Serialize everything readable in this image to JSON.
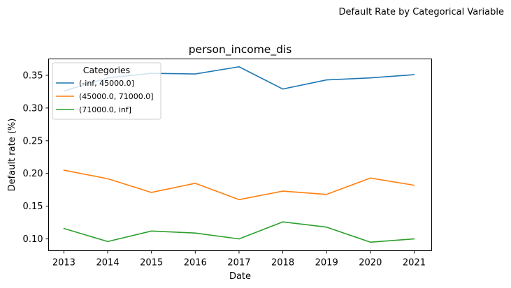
{
  "suptitle": "Default Rate by Categorical Variable",
  "chart_data": {
    "type": "line",
    "title": "person_income_dis",
    "xlabel": "Date",
    "ylabel": "Default rate (%)",
    "x": [
      2013,
      2014,
      2015,
      2016,
      2017,
      2018,
      2019,
      2020,
      2021
    ],
    "x_tick_labels": [
      "2013",
      "2014",
      "2015",
      "2016",
      "2017",
      "2018",
      "2019",
      "2020",
      "2021"
    ],
    "xlim": [
      2012.65,
      2021.4
    ],
    "ylim": [
      0.082,
      0.375
    ],
    "y_ticks": [
      0.1,
      0.15,
      0.2,
      0.25,
      0.3,
      0.35
    ],
    "y_tick_labels": [
      "0.10",
      "0.15",
      "0.20",
      "0.25",
      "0.30",
      "0.35"
    ],
    "grid": false,
    "legend": {
      "title": "Categories",
      "position": "upper-left"
    },
    "series": [
      {
        "name": "(-inf, 45000.0]",
        "color": "#1f77b4",
        "values": [
          0.326,
          0.346,
          0.353,
          0.352,
          0.363,
          0.329,
          0.343,
          0.346,
          0.351
        ]
      },
      {
        "name": "(45000.0, 71000.0]",
        "color": "#ff7f0e",
        "values": [
          0.205,
          0.192,
          0.171,
          0.185,
          0.16,
          0.173,
          0.168,
          0.193,
          0.182
        ]
      },
      {
        "name": "(71000.0, inf]",
        "color": "#2ca02c",
        "values": [
          0.116,
          0.096,
          0.112,
          0.109,
          0.1,
          0.126,
          0.118,
          0.095,
          0.1
        ]
      }
    ]
  }
}
